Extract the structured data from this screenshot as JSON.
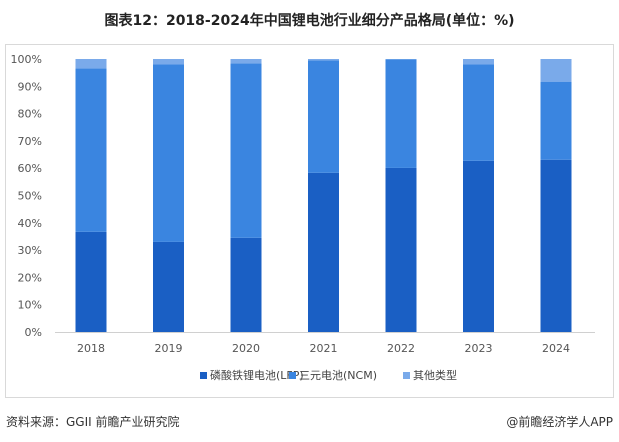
{
  "chart_data": {
    "type": "bar",
    "stacked": true,
    "title": "图表12：2018-2024年中国锂电池行业细分产品格局(单位：%)",
    "categories": [
      "2018",
      "2019",
      "2020",
      "2021",
      "2022",
      "2023",
      "2024"
    ],
    "series": [
      {
        "name": "磷酸铁锂电池(LFP)",
        "color": "#1a5fc4",
        "values": [
          36.7,
          33.0,
          34.5,
          58.3,
          60.1,
          62.7,
          63.1
        ]
      },
      {
        "name": "三元电池(NCM)",
        "color": "#3a85e0",
        "values": [
          59.8,
          65.0,
          63.9,
          41.2,
          39.8,
          35.3,
          28.6
        ]
      },
      {
        "name": "其他类型",
        "color": "#7aaaea",
        "values": [
          3.5,
          2.0,
          1.6,
          0.5,
          0.1,
          2.0,
          8.3
        ]
      }
    ],
    "yticks": [
      "0%",
      "10%",
      "20%",
      "30%",
      "40%",
      "50%",
      "60%",
      "70%",
      "80%",
      "90%",
      "100%"
    ],
    "ylim": [
      0,
      100
    ],
    "grid": false,
    "legend": "bottom"
  },
  "footer": {
    "source": "资料来源：GGII 前瞻产业研究院",
    "brand": "@前瞻经济学人APP"
  }
}
